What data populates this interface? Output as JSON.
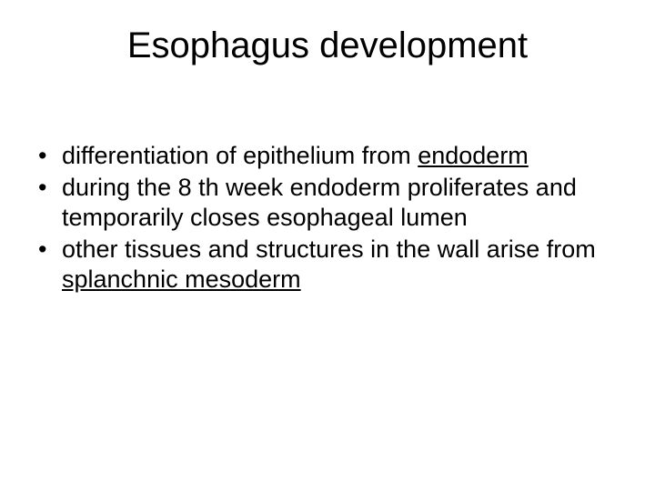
{
  "title": "Esophagus development",
  "bullets": [
    {
      "pre": "differentiation of epithelium from ",
      "u": "endoderm",
      "post": ""
    },
    {
      "pre": "during the 8 th week endoderm proliferates and temporarily closes esophageal lumen",
      "u": "",
      "post": ""
    },
    {
      "pre": "other tissues and structures in the wall arise from ",
      "u": "splanchnic mesoderm",
      "post": ""
    }
  ]
}
